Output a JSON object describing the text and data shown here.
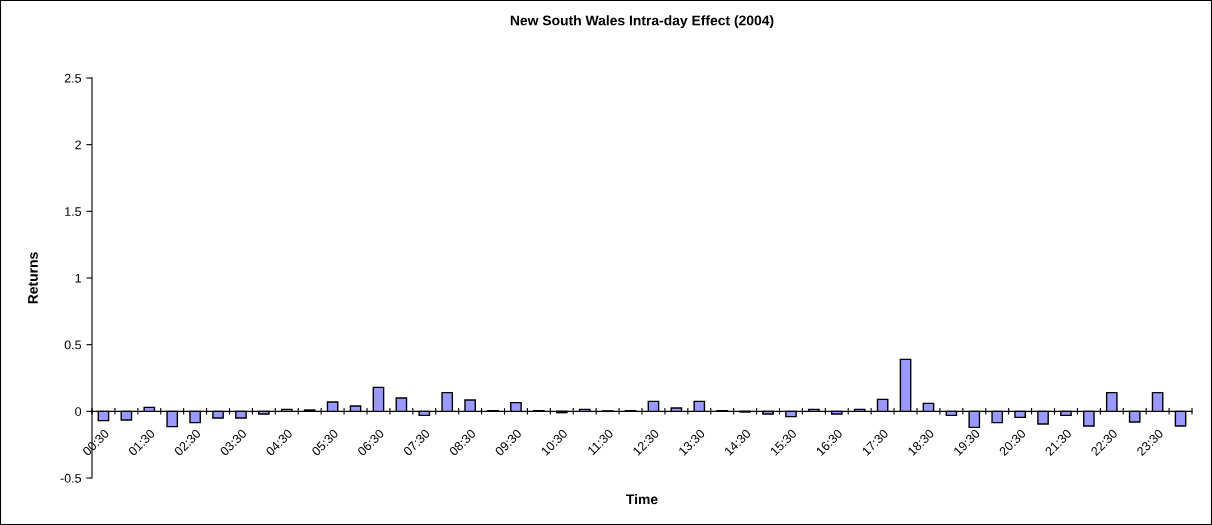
{
  "chart_data": {
    "type": "bar",
    "title": "New South Wales Intra-day Effect (2004)",
    "xlabel": "Time",
    "ylabel": "Returns",
    "categories": [
      "00:30",
      null,
      "01:30",
      null,
      "02:30",
      null,
      "03:30",
      null,
      "04:30",
      null,
      "05:30",
      null,
      "06:30",
      null,
      "07:30",
      null,
      "08:30",
      null,
      "09:30",
      null,
      "10:30",
      null,
      "11:30",
      null,
      "12:30",
      null,
      "13:30",
      null,
      "14:30",
      null,
      "15:30",
      null,
      "16:30",
      null,
      "17:30",
      null,
      "18:30",
      null,
      "19:30",
      null,
      "20:30",
      null,
      "21:30",
      null,
      "22:30",
      null,
      "23:30",
      null
    ],
    "values": [
      -0.07,
      -0.065,
      0.03,
      -0.115,
      -0.085,
      -0.05,
      -0.05,
      -0.02,
      0.015,
      0.01,
      0.07,
      0.04,
      0.18,
      0.1,
      -0.03,
      0.14,
      0.085,
      0.005,
      0.065,
      0.005,
      -0.01,
      0.015,
      0.003,
      0.005,
      0.075,
      0.025,
      0.075,
      0.005,
      -0.005,
      -0.02,
      -0.04,
      0.015,
      -0.02,
      0.015,
      0.09,
      0.39,
      0.06,
      -0.03,
      -0.12,
      -0.085,
      -0.045,
      -0.095,
      -0.03,
      -0.11,
      0.14,
      -0.08,
      0.14,
      -0.11
    ],
    "color": "#9999ff",
    "ylim": [
      -0.5,
      2.5
    ],
    "yticks": [
      -0.5,
      0,
      0.5,
      1,
      1.5,
      2,
      2.5
    ],
    "grid": false,
    "legend": false
  }
}
